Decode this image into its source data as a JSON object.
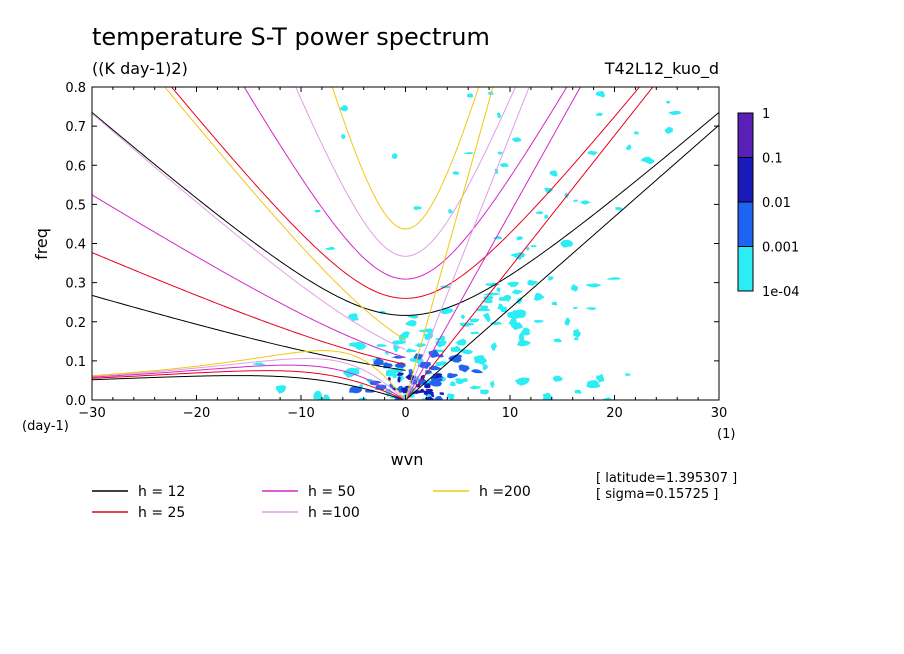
{
  "chart_data": {
    "type": "heatmap",
    "title": "temperature S-T power spectrum",
    "subtitle": "((K day-1)2)",
    "run_label": "T42L12_kuo_d",
    "xlabel": "wvn",
    "ylabel": "freq",
    "x_unit": "(1)",
    "y_unit": "(day-1)",
    "xlim": [
      -30,
      30
    ],
    "ylim": [
      0,
      0.8
    ],
    "xticks": [
      -30,
      -20,
      -10,
      0,
      10,
      20,
      30
    ],
    "yticks": [
      0.0,
      0.1,
      0.2,
      0.3,
      0.4,
      0.5,
      0.6,
      0.7,
      0.8
    ],
    "grid": false,
    "colorbar": {
      "levels": [
        "1",
        "0.1",
        "0.01",
        "0.001",
        "1e-04"
      ],
      "colors": [
        "#5a1fb4",
        "#1a1ab8",
        "#1e64f0",
        "#2cecf4"
      ]
    },
    "series": [
      {
        "name": "h = 12",
        "h": 12,
        "color": "#000000"
      },
      {
        "name": "h = 25",
        "h": 25,
        "color": "#e8001e"
      },
      {
        "name": "h = 50",
        "h": 50,
        "color": "#d428c8"
      },
      {
        "name": "h =100",
        "h": 100,
        "color": "#e29ee6"
      },
      {
        "name": "h =200",
        "h": 200,
        "color": "#f0c814"
      }
    ],
    "annotations": [
      "[ latitude=1.395307 ]",
      "[ sigma=0.15725 ]"
    ]
  }
}
